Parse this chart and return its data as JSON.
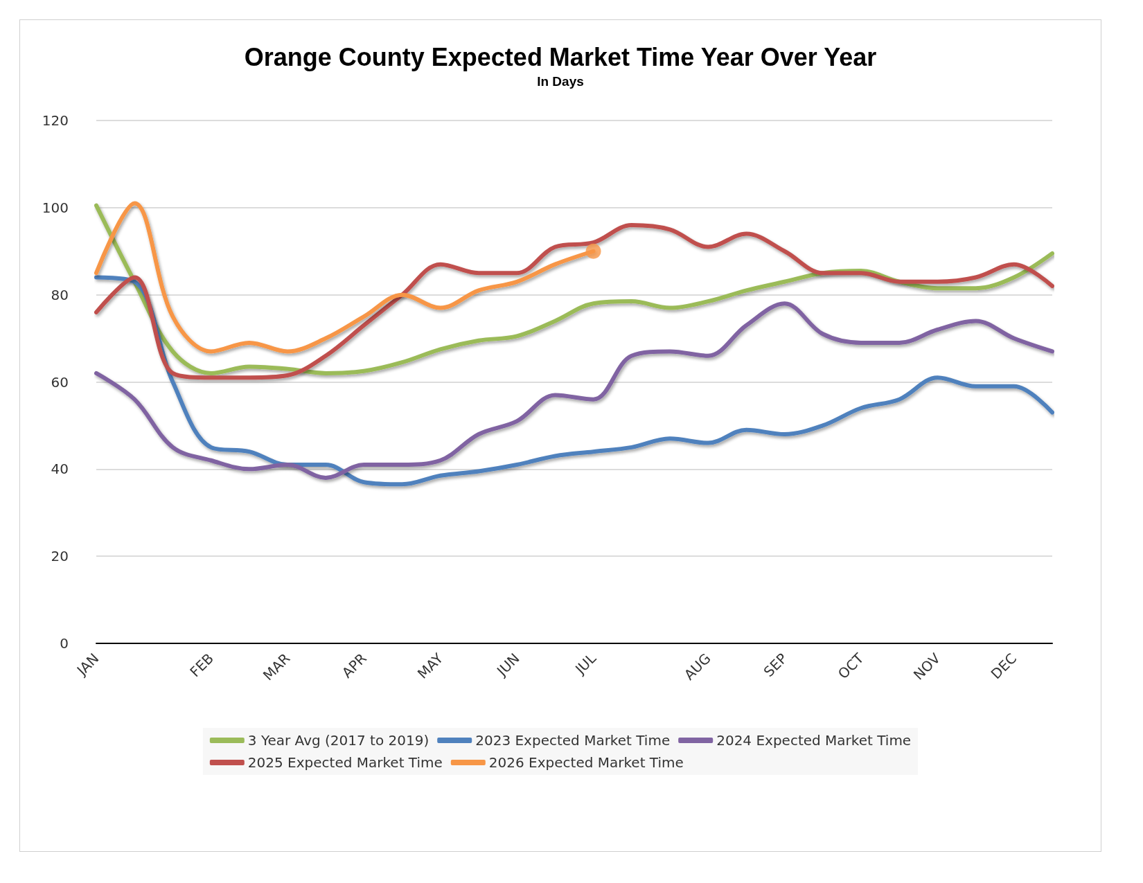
{
  "chart_data": {
    "type": "line",
    "title": "Orange County Expected Market Time Year Over Year",
    "subtitle": "In Days",
    "categories": [
      "JAN",
      null,
      null,
      "FEB",
      null,
      "MAR",
      null,
      "APR",
      null,
      "MAY",
      null,
      "JUN",
      null,
      "JUL",
      null,
      null,
      "AUG",
      null,
      "SEP",
      null,
      "OCT",
      null,
      "NOV",
      null,
      "DEC",
      null
    ],
    "series": [
      {
        "name": "3 Year Avg (2017 to 2019)",
        "color": "#9bbb59",
        "values": [
          100.5,
          83,
          67,
          62,
          63.5,
          63,
          62,
          62.5,
          64.5,
          67.5,
          69.5,
          70.5,
          74,
          78,
          78.5,
          77,
          78.5,
          81,
          83,
          85,
          85.5,
          83,
          81.5,
          81.5,
          84,
          89.5
        ]
      },
      {
        "name": "2023 Expected Market Time",
        "color": "#4f81bd",
        "values": [
          84,
          83,
          60,
          45,
          44,
          41,
          41,
          37,
          36.5,
          38.5,
          39.5,
          41,
          43,
          44,
          45,
          47,
          46,
          49,
          48,
          50,
          54,
          56,
          61,
          59,
          59,
          53
        ]
      },
      {
        "name": "2024 Expected Market Time",
        "color": "#8064a2",
        "values": [
          62,
          56,
          45,
          42,
          40,
          41,
          38,
          41,
          41,
          42,
          48,
          51,
          57,
          56,
          66,
          67,
          66,
          73,
          78,
          71,
          69,
          69,
          72,
          74,
          70,
          67
        ]
      },
      {
        "name": "2025 Expected Market Time",
        "color": "#c0504d",
        "values": [
          76,
          84,
          62,
          61,
          61,
          61.5,
          66,
          73,
          80,
          87,
          85,
          85,
          91,
          92,
          96,
          95,
          91,
          94,
          90,
          85,
          85,
          83,
          83,
          84,
          87,
          82
        ]
      },
      {
        "name": "2026 Expected Market Time",
        "color": "#f79646",
        "values": [
          85,
          101,
          75,
          67,
          69,
          67,
          70,
          75,
          80,
          77,
          81,
          83,
          87,
          90,
          null,
          null,
          null,
          null,
          null,
          null,
          null,
          null,
          null,
          null,
          null,
          null
        ]
      },
      {
        "type": "scatter",
        "color": "#f79646",
        "marker": "circle",
        "x": [
          "JUL"
        ],
        "values": [
          90
        ]
      }
    ],
    "ylim": [
      0,
      120
    ],
    "yticks": [
      0,
      20,
      40,
      60,
      80,
      100,
      120
    ],
    "grid": "y",
    "legend": "bottom",
    "marker": "none"
  }
}
